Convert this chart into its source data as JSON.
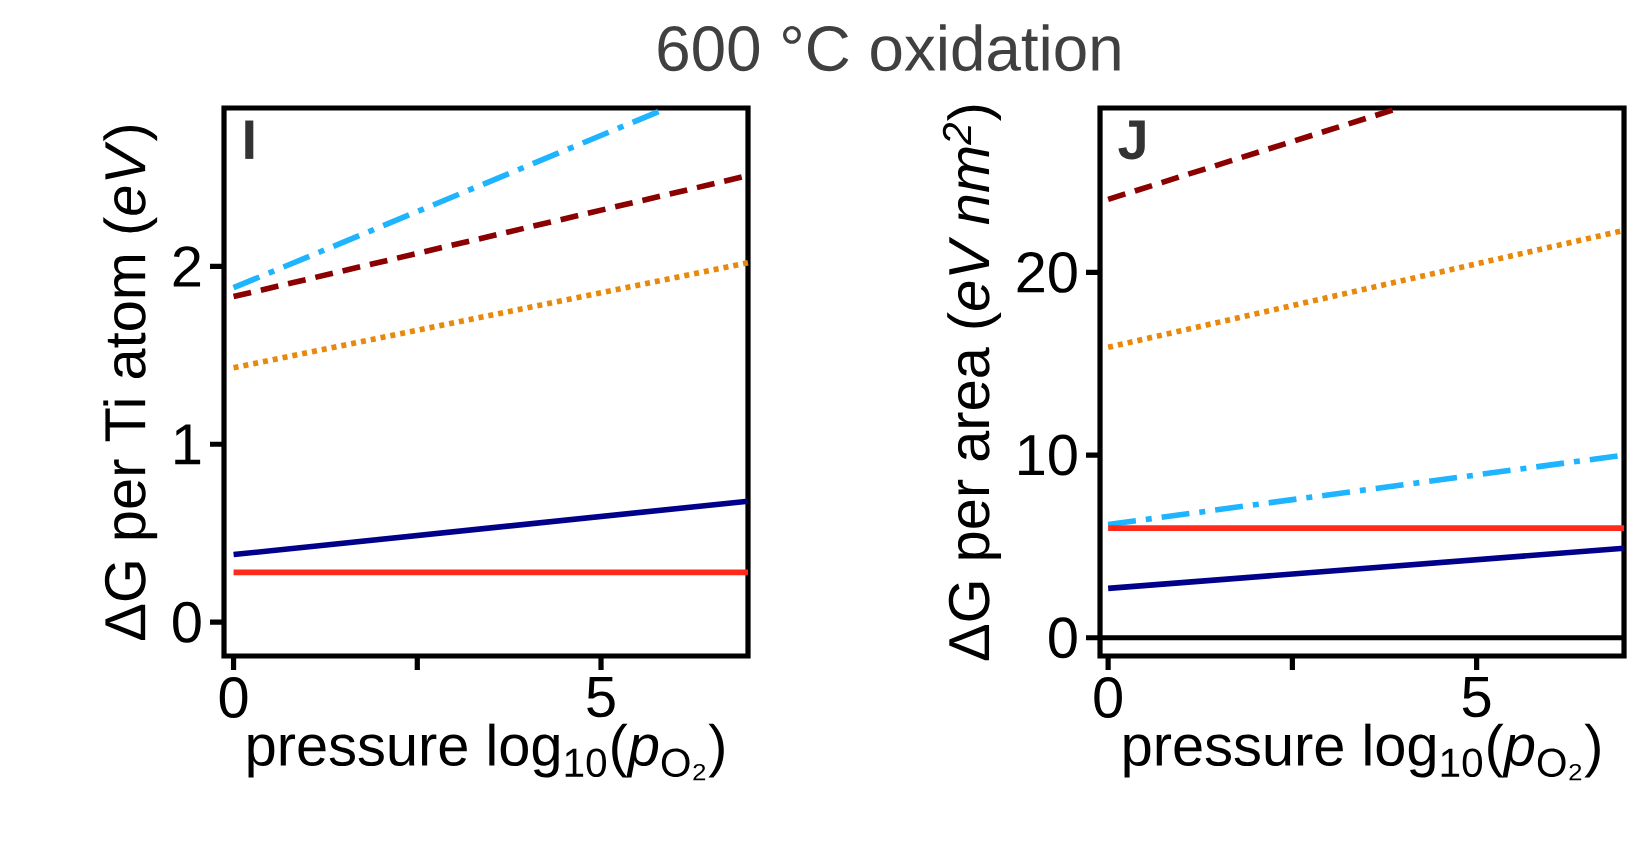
{
  "chart_data": [
    {
      "type": "line",
      "title": "600 °C oxidation",
      "xlabel": "pressure log$_{10}$(*p*$_{O₂}$)",
      "ylabel": "ΔG per Ti atom (*eV*)",
      "annotations": [
        "I"
      ],
      "xlim": [
        -0.13,
        7.0
      ],
      "ylim": [
        -0.19,
        2.89
      ],
      "xticks": [
        0,
        {
          "value": 2.5,
          "label": null
        },
        5
      ],
      "yticks": [
        0,
        1,
        2
      ],
      "grid": false,
      "series": [
        {
          "color": "#1eb4ff",
          "line_style": "dashdot",
          "x": [
            0,
            5.9
          ],
          "values": [
            1.88,
            2.89
          ]
        },
        {
          "color": "#8b0000",
          "line_style": "dashed",
          "x": [
            0,
            7.0
          ],
          "values": [
            1.83,
            2.51
          ]
        },
        {
          "color": "#e8890c",
          "line_style": "dotted",
          "x": [
            0,
            7.0
          ],
          "values": [
            1.43,
            2.02
          ]
        },
        {
          "color": "#00008b",
          "line_style": "solid",
          "x": [
            0,
            7.0
          ],
          "values": [
            0.38,
            0.68
          ]
        },
        {
          "color": "#ff2a1a",
          "line_style": "solid",
          "x": [
            0,
            7.0
          ],
          "values": [
            0.28,
            0.28
          ]
        }
      ]
    },
    {
      "type": "line",
      "xlabel": "pressure log$_{10}$(*p*$_{O₂}$)",
      "ylabel": "ΔG per area (*eV nm$^{2}$*)",
      "annotations": [
        "J"
      ],
      "xlim": [
        -0.11,
        7.0
      ],
      "ylim": [
        -1.0,
        29.0
      ],
      "xticks": [
        0,
        {
          "value": 2.5,
          "label": null
        },
        5
      ],
      "yticks": [
        0,
        10,
        20
      ],
      "grid": false,
      "ref_lines": [
        {
          "axis": "y",
          "value": 0,
          "color": "#000000"
        }
      ],
      "series": [
        {
          "color": "#8b0000",
          "line_style": "dashed",
          "x": [
            0,
            3.95
          ],
          "values": [
            24.0,
            29.0
          ]
        },
        {
          "color": "#e8890c",
          "line_style": "dotted",
          "x": [
            0,
            7.0
          ],
          "values": [
            15.9,
            22.3
          ]
        },
        {
          "color": "#1eb4ff",
          "line_style": "dashdot",
          "x": [
            0,
            7.0
          ],
          "values": [
            6.2,
            10.0
          ]
        },
        {
          "color": "#ff2a1a",
          "line_style": "solid",
          "x": [
            0,
            7.0
          ],
          "values": [
            6.0,
            6.0
          ]
        },
        {
          "color": "#00008b",
          "line_style": "solid",
          "x": [
            0,
            7.0
          ],
          "values": [
            2.7,
            4.9
          ]
        }
      ]
    }
  ]
}
